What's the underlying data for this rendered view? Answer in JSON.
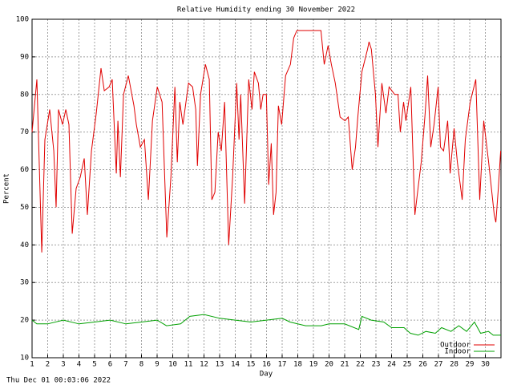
{
  "chart_data": {
    "type": "line",
    "title": "Relative Humidity ending 30 November 2022",
    "x_label": "Day",
    "y_label": "Percent",
    "footer": "Thu Dec 01 00:03:06 2022",
    "xlim": [
      1,
      31
    ],
    "xticks": [
      1,
      2,
      3,
      4,
      5,
      6,
      7,
      8,
      9,
      10,
      11,
      12,
      13,
      14,
      15,
      16,
      17,
      18,
      19,
      20,
      21,
      22,
      23,
      24,
      25,
      26,
      27,
      28,
      29,
      30
    ],
    "ylim": [
      10,
      100
    ],
    "yticks": [
      10,
      20,
      30,
      40,
      50,
      60,
      70,
      80,
      90,
      100
    ],
    "grid": true,
    "legend": "bottom-right",
    "series": [
      {
        "name": "Outdoor",
        "color": "#e00000",
        "x": [
          1.0,
          1.31,
          1.62,
          1.82,
          2.13,
          2.39,
          2.54,
          2.69,
          2.95,
          3.16,
          3.36,
          3.57,
          3.82,
          4.08,
          4.34,
          4.54,
          4.8,
          5.11,
          5.41,
          5.62,
          5.93,
          6.13,
          6.39,
          6.49,
          6.65,
          6.85,
          7.16,
          7.52,
          7.67,
          7.93,
          8.19,
          8.44,
          8.7,
          9.01,
          9.32,
          9.62,
          9.88,
          10.14,
          10.29,
          10.45,
          10.65,
          11.01,
          11.27,
          11.47,
          11.58,
          11.78,
          12.09,
          12.34,
          12.5,
          12.7,
          12.91,
          13.11,
          13.32,
          13.58,
          13.83,
          14.09,
          14.24,
          14.35,
          14.6,
          14.86,
          15.07,
          15.22,
          15.48,
          15.63,
          15.78,
          15.99,
          16.14,
          16.3,
          16.45,
          16.61,
          16.76,
          16.97,
          17.22,
          17.53,
          17.74,
          17.94,
          19.48,
          19.69,
          19.94,
          20.15,
          20.4,
          20.71,
          21.02,
          21.23,
          21.48,
          21.69,
          21.84,
          22.1,
          22.46,
          22.56,
          22.71,
          22.97,
          23.13,
          23.38,
          23.64,
          23.84,
          24.2,
          24.41,
          24.56,
          24.77,
          24.92,
          25.23,
          25.49,
          25.69,
          25.9,
          26.15,
          26.31,
          26.51,
          26.72,
          26.98,
          27.13,
          27.33,
          27.59,
          27.75,
          28.0,
          28.21,
          28.52,
          28.72,
          29.03,
          29.39,
          29.64,
          29.9,
          30.21,
          30.57,
          30.67,
          30.83,
          30.98
        ],
        "values": [
          70,
          84,
          38,
          68,
          76,
          65,
          50,
          76,
          72,
          76,
          72,
          43,
          55,
          58,
          63,
          48,
          65,
          75,
          87,
          81,
          82,
          84,
          59,
          73,
          58,
          80,
          85,
          77,
          72,
          66,
          68,
          52,
          73,
          82,
          78,
          42,
          58,
          82,
          62,
          78,
          72,
          83,
          82,
          76,
          61,
          80,
          88,
          84,
          52,
          54,
          70,
          65,
          78,
          40,
          58,
          83,
          68,
          80,
          51,
          84,
          76,
          86,
          83,
          76,
          80,
          80,
          56,
          67,
          48,
          54,
          77,
          72,
          85,
          88,
          95,
          97,
          97,
          88,
          93,
          88,
          83,
          74,
          73,
          74,
          60,
          66,
          74,
          86,
          92,
          94,
          92,
          80,
          66,
          83,
          75,
          82,
          80,
          80,
          70,
          78,
          73,
          82,
          48,
          55,
          62,
          75,
          85,
          66,
          72,
          82,
          66,
          65,
          73,
          59,
          71,
          62,
          52,
          68,
          78,
          84,
          52,
          73,
          62,
          48,
          46,
          55,
          65
        ]
      },
      {
        "name": "Indoor",
        "color": "#00a000",
        "x": [
          1,
          1.3,
          2,
          3,
          4,
          5,
          6,
          7,
          8,
          9,
          9.6,
          10.5,
          11.1,
          12,
          13,
          14,
          15,
          16,
          17,
          17.5,
          18.5,
          19.5,
          20,
          21,
          21.9,
          22.1,
          22.7,
          23.5,
          24,
          24.8,
          25.2,
          25.7,
          26.2,
          26.8,
          27.2,
          27.8,
          28.3,
          28.8,
          29.3,
          29.7,
          30.2,
          30.5,
          31
        ],
        "values": [
          20,
          19,
          19,
          20,
          19,
          19.5,
          20,
          19,
          19.5,
          20,
          18.5,
          19,
          21,
          21.5,
          20.5,
          20,
          19.5,
          20,
          20.5,
          19.5,
          18.5,
          18.5,
          19,
          19,
          17.5,
          21,
          20,
          19.5,
          18,
          18,
          16.5,
          16,
          17,
          16.5,
          18,
          17,
          18.5,
          17,
          19.5,
          16.5,
          17,
          16,
          16
        ]
      }
    ]
  }
}
